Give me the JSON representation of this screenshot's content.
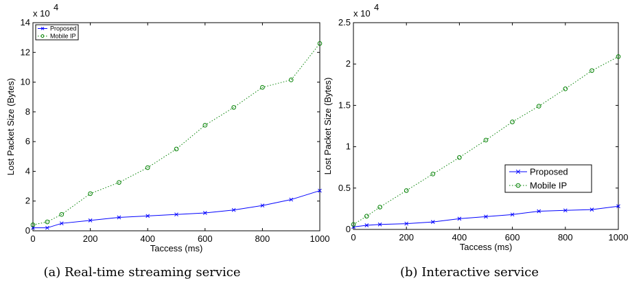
{
  "chart_data": [
    {
      "type": "line",
      "caption": "(a) Real-time streaming service",
      "xlabel": "Taccess (ms)",
      "ylabel": "Lost Packet Size (Bytes)",
      "y_multiplier_label": "x 10",
      "y_multiplier_exponent": "4",
      "xlim": [
        0,
        1000
      ],
      "ylim": [
        0,
        14
      ],
      "x_ticks": [
        0,
        200,
        400,
        600,
        800,
        1000
      ],
      "y_ticks": [
        0,
        2,
        4,
        6,
        8,
        10,
        12,
        14
      ],
      "legend_position": "top-left",
      "series": [
        {
          "name": "Proposed",
          "color": "#0000ff",
          "line_style": "solid",
          "marker": "x",
          "x": [
            0,
            50,
            100,
            200,
            300,
            400,
            500,
            600,
            700,
            800,
            900,
            1000
          ],
          "y": [
            0.2,
            0.2,
            0.5,
            0.7,
            0.9,
            1.0,
            1.1,
            1.2,
            1.4,
            1.7,
            2.1,
            2.7
          ]
        },
        {
          "name": "Mobile IP",
          "color": "#008000",
          "line_style": "dotted",
          "marker": "o",
          "x": [
            0,
            50,
            100,
            200,
            300,
            400,
            500,
            600,
            700,
            800,
            900,
            1000
          ],
          "y": [
            0.4,
            0.6,
            1.1,
            2.5,
            3.25,
            4.25,
            5.5,
            7.1,
            8.3,
            9.65,
            10.15,
            12.6
          ]
        }
      ]
    },
    {
      "type": "line",
      "caption": "(b) Interactive service",
      "xlabel": "Taccess (ms)",
      "ylabel": "Lost Packet Size (Bytes)",
      "y_multiplier_label": "x 10",
      "y_multiplier_exponent": "4",
      "xlim": [
        0,
        1000
      ],
      "ylim": [
        0,
        2.5
      ],
      "x_ticks": [
        0,
        200,
        400,
        600,
        800,
        1000
      ],
      "y_ticks": [
        0,
        0.5,
        1,
        1.5,
        2,
        2.5
      ],
      "legend_position": "bottom-right",
      "series": [
        {
          "name": "Proposed",
          "color": "#0000ff",
          "line_style": "solid",
          "marker": "x",
          "x": [
            0,
            50,
            100,
            200,
            300,
            400,
            500,
            600,
            700,
            800,
            900,
            1000
          ],
          "y": [
            0.03,
            0.05,
            0.06,
            0.07,
            0.09,
            0.13,
            0.155,
            0.18,
            0.22,
            0.23,
            0.24,
            0.28
          ]
        },
        {
          "name": "Mobile IP",
          "color": "#008000",
          "line_style": "dotted",
          "marker": "o",
          "x": [
            0,
            50,
            100,
            200,
            300,
            400,
            500,
            600,
            700,
            800,
            900,
            1000
          ],
          "y": [
            0.06,
            0.16,
            0.27,
            0.47,
            0.67,
            0.87,
            1.08,
            1.3,
            1.49,
            1.7,
            1.92,
            2.09
          ]
        }
      ]
    }
  ]
}
